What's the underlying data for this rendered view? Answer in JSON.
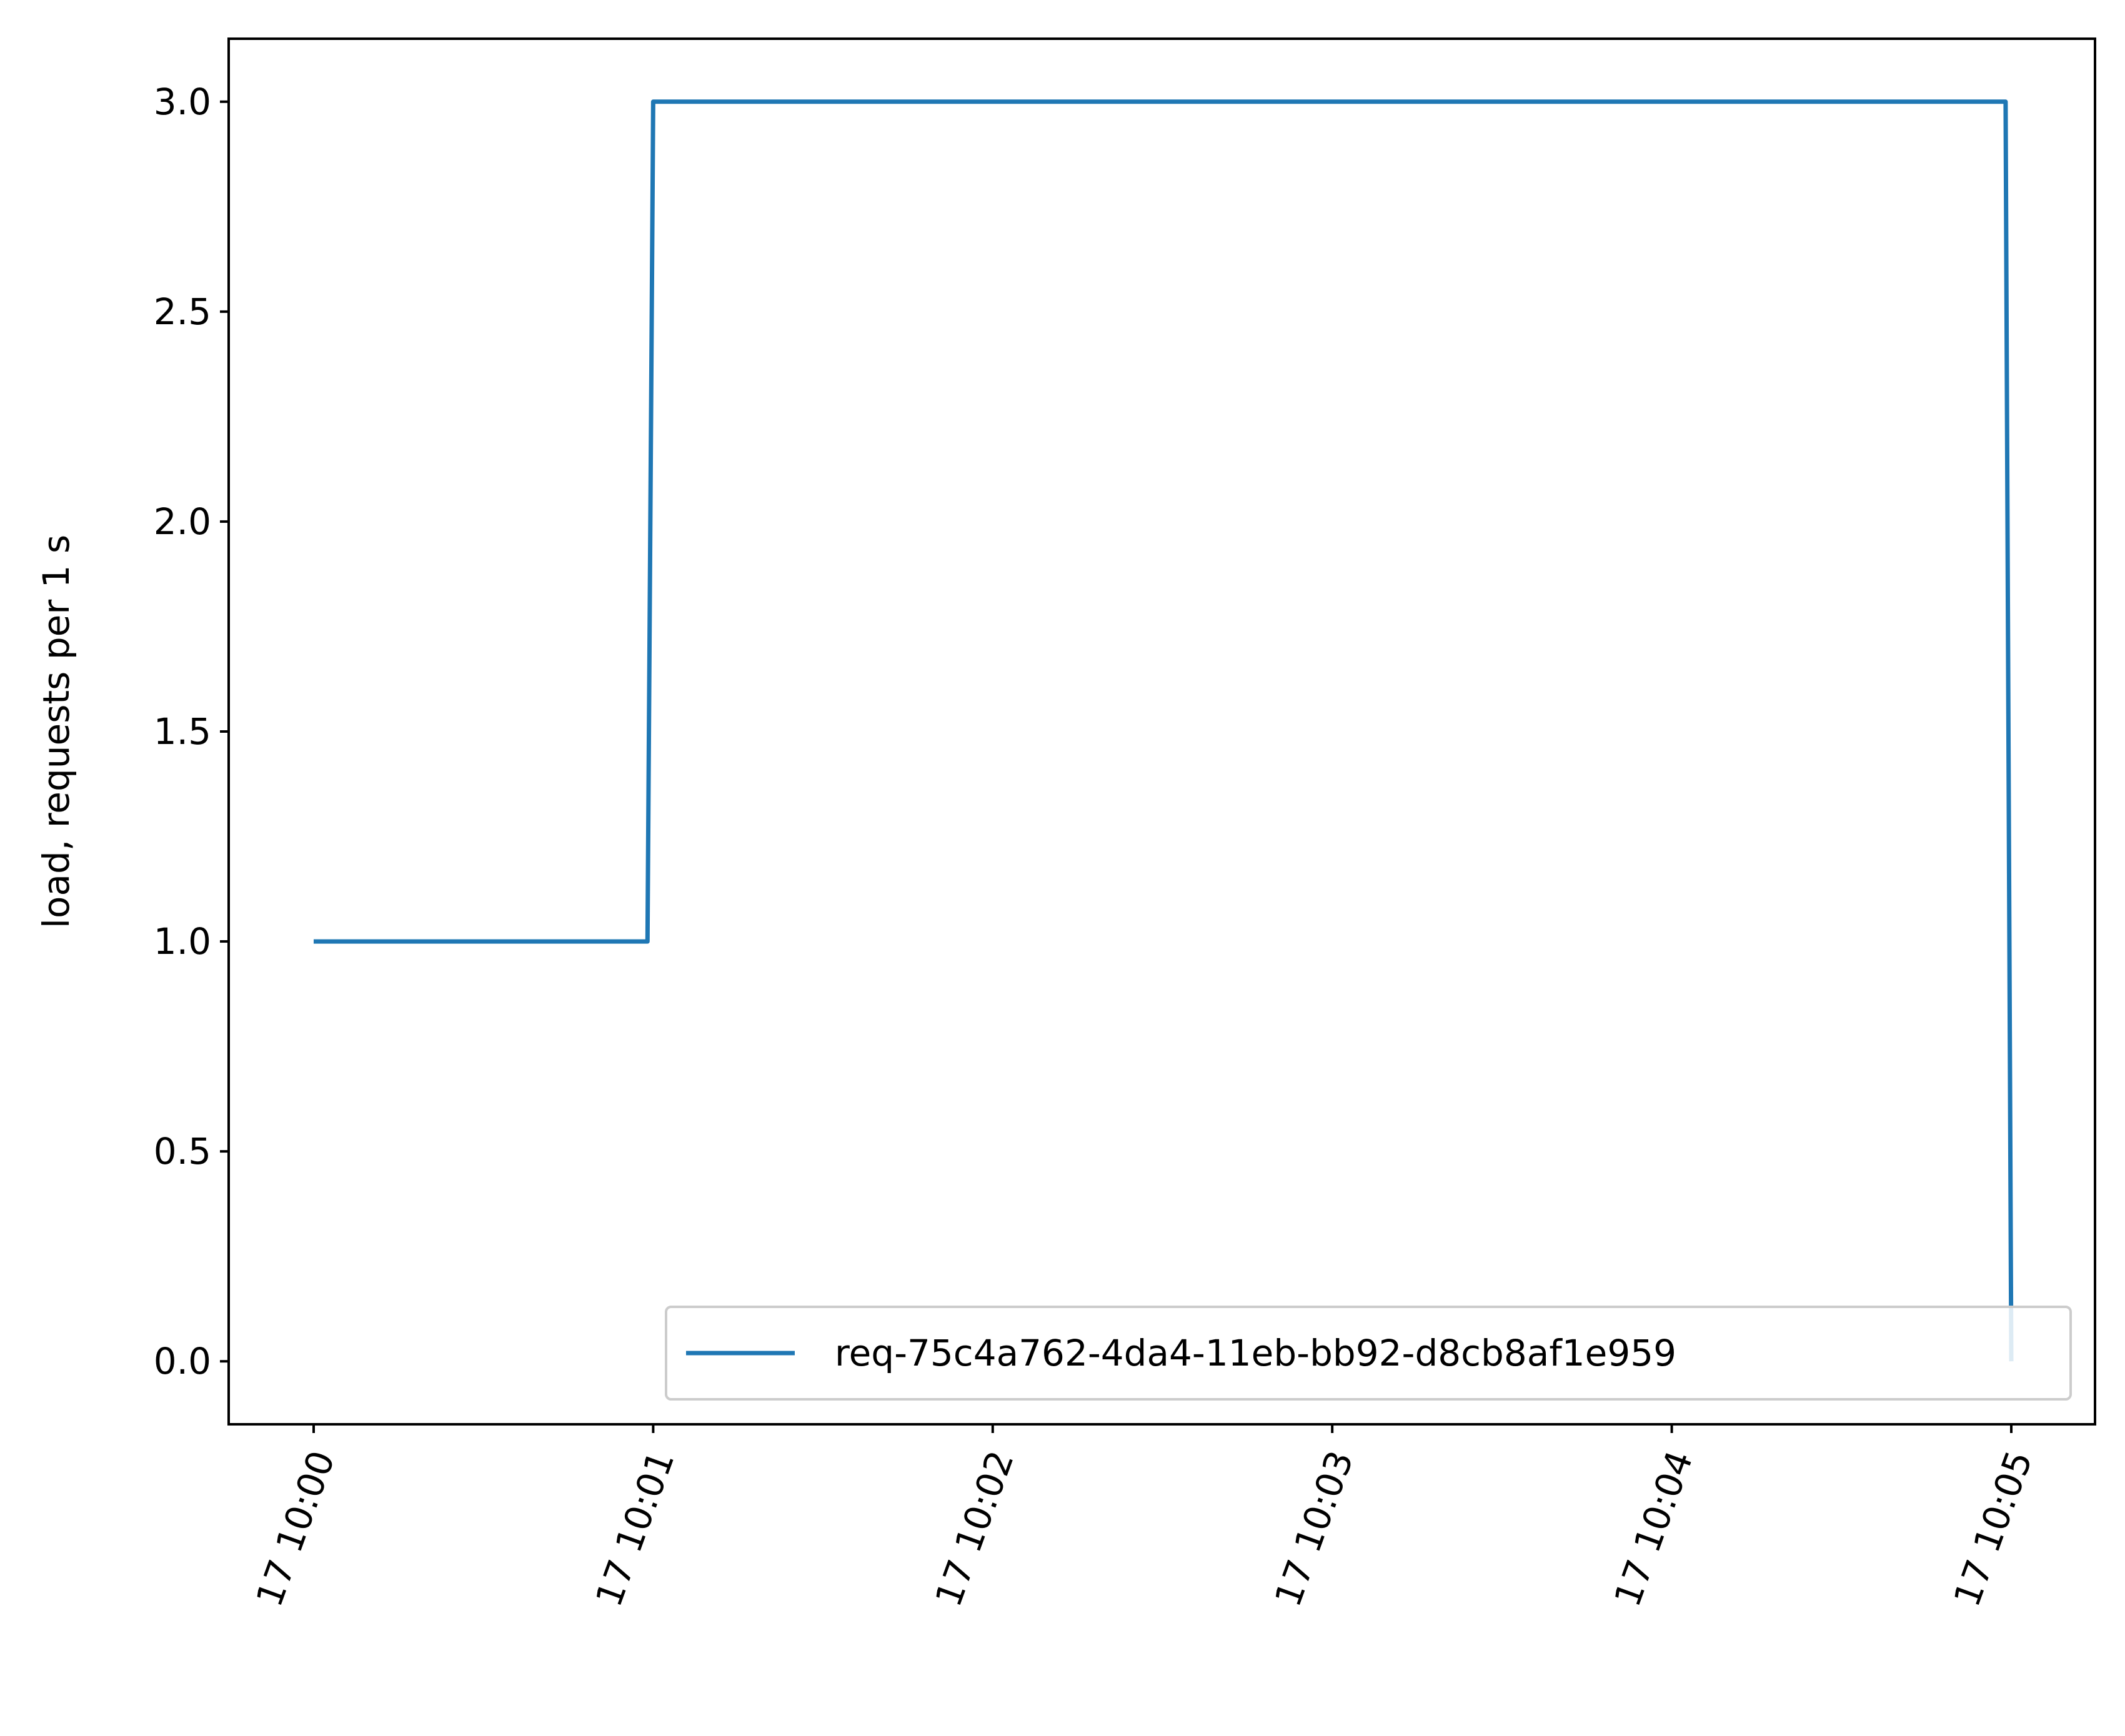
{
  "chart_data": {
    "type": "line",
    "title": "",
    "xlabel": "",
    "ylabel": "load, requests per 1 s",
    "x_unit": "minutes",
    "xlim": [
      "10:00:00",
      "10:05:00"
    ],
    "ylim": [
      -0.15,
      3.15
    ],
    "grid": false,
    "legend_position": "lower-right",
    "x_tick_values": [
      "10:00:00",
      "10:01:00",
      "10:02:00",
      "10:03:00",
      "10:04:00",
      "10:05:00"
    ],
    "x_tick_labels": [
      "17 10:00",
      "17 10:01",
      "17 10:02",
      "17 10:03",
      "17 10:04",
      "17 10:05"
    ],
    "y_ticks": [
      0.0,
      0.5,
      1.0,
      1.5,
      2.0,
      2.5,
      3.0
    ],
    "y_tick_labels": [
      "0.0",
      "0.5",
      "1.0",
      "1.5",
      "2.0",
      "2.5",
      "3.0"
    ],
    "series": [
      {
        "name": "req-75c4a762-4da4-11eb-bb92-d8cb8af1e959",
        "color": "#1f77b4",
        "x": [
          "10:00:00",
          "10:00:59",
          "10:01:00",
          "10:04:59",
          "10:05:00"
        ],
        "y": [
          1,
          1,
          3,
          3,
          0
        ]
      }
    ]
  }
}
